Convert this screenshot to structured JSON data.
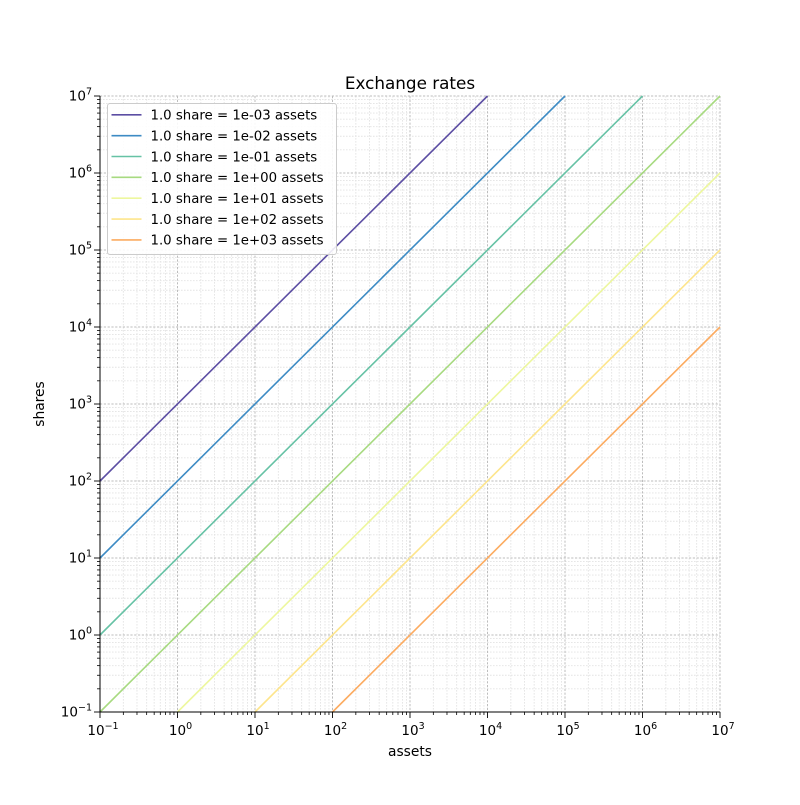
{
  "figure": {
    "background": "#ffffff"
  },
  "chart_data": {
    "type": "line",
    "title": "Exchange rates",
    "xlabel": "assets",
    "ylabel": "shares",
    "xscale": "log",
    "yscale": "log",
    "xlim": [
      0.1,
      10000000
    ],
    "ylim": [
      0.1,
      10000000
    ],
    "x_tick_exponents": [
      -1,
      0,
      1,
      2,
      3,
      4,
      5,
      6,
      7
    ],
    "y_tick_exponents": [
      -1,
      0,
      1,
      2,
      3,
      4,
      5,
      6,
      7
    ],
    "tick_label_format": "10^exponent",
    "grid": {
      "which": "both",
      "major_on": true,
      "minor_on": true
    },
    "legend": {
      "location": "upper left"
    },
    "series": [
      {
        "label": "1.0 share = 1e-03 assets",
        "assets_per_share": 0.001,
        "color": "#5c4ea3",
        "relation": "shares = assets / 0.001"
      },
      {
        "label": "1.0 share = 1e-02 assets",
        "assets_per_share": 0.01,
        "color": "#3d8bc4",
        "relation": "shares = assets / 0.01"
      },
      {
        "label": "1.0 share = 1e-01 assets",
        "assets_per_share": 0.1,
        "color": "#66c2a5",
        "relation": "shares = assets / 0.1"
      },
      {
        "label": "1.0 share = 1e+00 assets",
        "assets_per_share": 1.0,
        "color": "#a7da80",
        "relation": "shares = assets / 1"
      },
      {
        "label": "1.0 share = 1e+01 assets",
        "assets_per_share": 10.0,
        "color": "#edf79e",
        "relation": "shares = assets / 10"
      },
      {
        "label": "1.0 share = 1e+02 assets",
        "assets_per_share": 100.0,
        "color": "#fde58c",
        "relation": "shares = assets / 100"
      },
      {
        "label": "1.0 share = 1e+03 assets",
        "assets_per_share": 1000.0,
        "color": "#fcab60",
        "relation": "shares = assets / 1000"
      }
    ],
    "colors": {
      "grid_major": "#bdbdbd",
      "grid_minor": "#e3e3e3",
      "spine": "#000000",
      "tick": "#000000",
      "text": "#000000",
      "legend_border": "#cccccc",
      "legend_background": "#ffffff"
    }
  }
}
